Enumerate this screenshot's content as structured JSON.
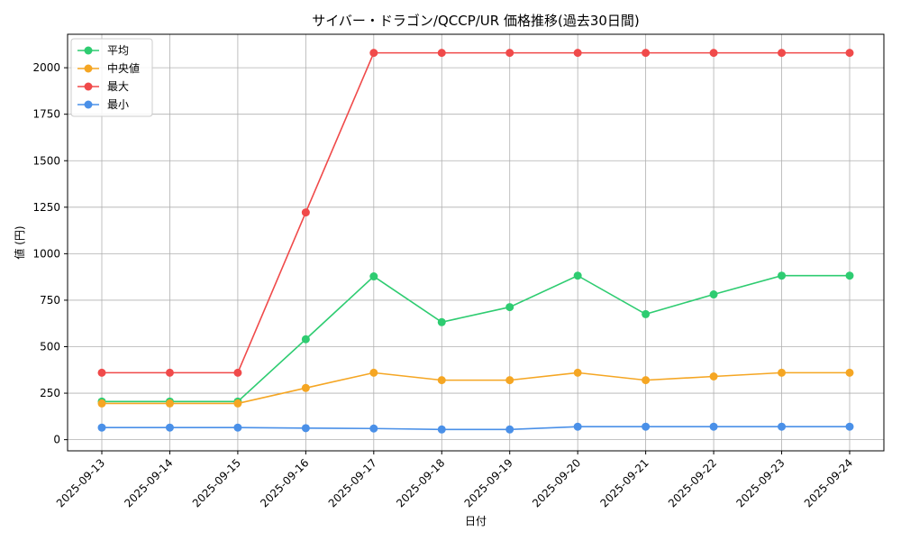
{
  "chart_data": {
    "type": "line",
    "title": "サイバー・ドラゴン/QCCP/UR 価格推移(過去30日間)",
    "xlabel": "日付",
    "ylabel": "値 (円)",
    "categories": [
      "2025-09-13",
      "2025-09-14",
      "2025-09-15",
      "2025-09-16",
      "2025-09-17",
      "2025-09-18",
      "2025-09-19",
      "2025-09-20",
      "2025-09-21",
      "2025-09-22",
      "2025-09-23",
      "2025-09-24"
    ],
    "ylim": [
      -60,
      2180
    ],
    "yticks": [
      0,
      250,
      500,
      750,
      1000,
      1250,
      1500,
      1750,
      2000
    ],
    "grid": true,
    "legend_position": "top-left",
    "series": [
      {
        "name": "平均",
        "color": "#2ecc71",
        "values": [
          205,
          205,
          205,
          540,
          878,
          632,
          713,
          882,
          675,
          781,
          882,
          882
        ]
      },
      {
        "name": "中央値",
        "color": "#f5a623",
        "values": [
          195,
          195,
          195,
          278,
          360,
          320,
          320,
          360,
          320,
          340,
          360,
          360
        ]
      },
      {
        "name": "最大",
        "color": "#f04a4a",
        "values": [
          360,
          360,
          360,
          1222,
          2080,
          2080,
          2080,
          2080,
          2080,
          2080,
          2080,
          2080
        ]
      },
      {
        "name": "最小",
        "color": "#4a90e8",
        "values": [
          65,
          65,
          65,
          62,
          60,
          55,
          55,
          70,
          70,
          70,
          70,
          70
        ]
      }
    ]
  }
}
